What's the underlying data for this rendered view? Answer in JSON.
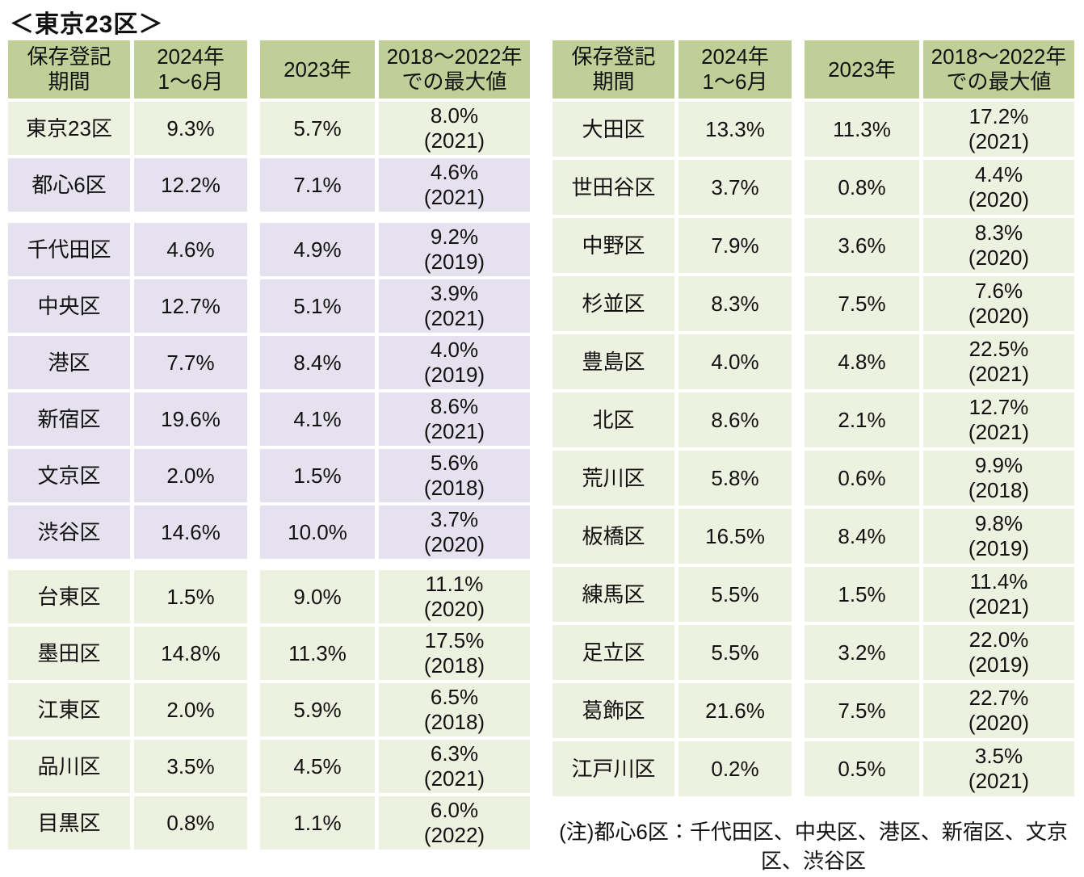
{
  "title": "＜東京23区＞",
  "colors": {
    "header": "#bfcf97",
    "green": "#edf1df",
    "purple": "#e6e1ee",
    "text": "#111111"
  },
  "column_headers": {
    "period": "保存登記\n期間",
    "h2024": "2024年\n1～6月",
    "h2023": "2023年",
    "hmax": "2018～2022年\nでの最大値"
  },
  "left_table": {
    "rows": [
      {
        "name": "東京23区",
        "v2024": "9.3%",
        "v2023": "5.7%",
        "max": "8.0%",
        "max_year": "(2021)",
        "tone": "green",
        "section_break": false
      },
      {
        "name": "都心6区",
        "v2024": "12.2%",
        "v2023": "7.1%",
        "max": "4.6%",
        "max_year": "(2021)",
        "tone": "purple",
        "section_break": false
      },
      {
        "name": "千代田区",
        "v2024": "4.6%",
        "v2023": "4.9%",
        "max": "9.2%",
        "max_year": "(2019)",
        "tone": "purple",
        "section_break": true
      },
      {
        "name": "中央区",
        "v2024": "12.7%",
        "v2023": "5.1%",
        "max": "3.9%",
        "max_year": "(2021)",
        "tone": "purple",
        "section_break": false
      },
      {
        "name": "港区",
        "v2024": "7.7%",
        "v2023": "8.4%",
        "max": "4.0%",
        "max_year": "(2019)",
        "tone": "purple",
        "section_break": false
      },
      {
        "name": "新宿区",
        "v2024": "19.6%",
        "v2023": "4.1%",
        "max": "8.6%",
        "max_year": "(2021)",
        "tone": "purple",
        "section_break": false
      },
      {
        "name": "文京区",
        "v2024": "2.0%",
        "v2023": "1.5%",
        "max": "5.6%",
        "max_year": "(2018)",
        "tone": "purple",
        "section_break": false
      },
      {
        "name": "渋谷区",
        "v2024": "14.6%",
        "v2023": "10.0%",
        "max": "3.7%",
        "max_year": "(2020)",
        "tone": "purple",
        "section_break": false
      },
      {
        "name": "台東区",
        "v2024": "1.5%",
        "v2023": "9.0%",
        "max": "11.1%",
        "max_year": "(2020)",
        "tone": "green",
        "section_break": true
      },
      {
        "name": "墨田区",
        "v2024": "14.8%",
        "v2023": "11.3%",
        "max": "17.5%",
        "max_year": "(2018)",
        "tone": "green",
        "section_break": false
      },
      {
        "name": "江東区",
        "v2024": "2.0%",
        "v2023": "5.9%",
        "max": "6.5%",
        "max_year": "(2018)",
        "tone": "green",
        "section_break": false
      },
      {
        "name": "品川区",
        "v2024": "3.5%",
        "v2023": "4.5%",
        "max": "6.3%",
        "max_year": "(2021)",
        "tone": "green",
        "section_break": false
      },
      {
        "name": "目黒区",
        "v2024": "0.8%",
        "v2023": "1.1%",
        "max": "6.0%",
        "max_year": "(2022)",
        "tone": "green",
        "section_break": false
      }
    ]
  },
  "right_table": {
    "rows": [
      {
        "name": "大田区",
        "v2024": "13.3%",
        "v2023": "11.3%",
        "max": "17.2%",
        "max_year": "(2021)",
        "tone": "green",
        "section_break": false
      },
      {
        "name": "世田谷区",
        "v2024": "3.7%",
        "v2023": "0.8%",
        "max": "4.4%",
        "max_year": "(2020)",
        "tone": "green",
        "section_break": false
      },
      {
        "name": "中野区",
        "v2024": "7.9%",
        "v2023": "3.6%",
        "max": "8.3%",
        "max_year": "(2020)",
        "tone": "green",
        "section_break": false
      },
      {
        "name": "杉並区",
        "v2024": "8.3%",
        "v2023": "7.5%",
        "max": "7.6%",
        "max_year": "(2020)",
        "tone": "green",
        "section_break": false
      },
      {
        "name": "豊島区",
        "v2024": "4.0%",
        "v2023": "4.8%",
        "max": "22.5%",
        "max_year": "(2021)",
        "tone": "green",
        "section_break": false
      },
      {
        "name": "北区",
        "v2024": "8.6%",
        "v2023": "2.1%",
        "max": "12.7%",
        "max_year": "(2021)",
        "tone": "green",
        "section_break": false
      },
      {
        "name": "荒川区",
        "v2024": "5.8%",
        "v2023": "0.6%",
        "max": "9.9%",
        "max_year": "(2018)",
        "tone": "green",
        "section_break": false
      },
      {
        "name": "板橋区",
        "v2024": "16.5%",
        "v2023": "8.4%",
        "max": "9.8%",
        "max_year": "(2019)",
        "tone": "green",
        "section_break": false
      },
      {
        "name": "練馬区",
        "v2024": "5.5%",
        "v2023": "1.5%",
        "max": "11.4%",
        "max_year": "(2021)",
        "tone": "green",
        "section_break": false
      },
      {
        "name": "足立区",
        "v2024": "5.5%",
        "v2023": "3.2%",
        "max": "22.0%",
        "max_year": "(2019)",
        "tone": "green",
        "section_break": false
      },
      {
        "name": "葛飾区",
        "v2024": "21.6%",
        "v2023": "7.5%",
        "max": "22.7%",
        "max_year": "(2020)",
        "tone": "green",
        "section_break": false
      },
      {
        "name": "江戸川区",
        "v2024": "0.2%",
        "v2023": "0.5%",
        "max": "3.5%",
        "max_year": "(2021)",
        "tone": "green",
        "section_break": false
      }
    ]
  },
  "note": "(注)都心6区：千代田区、中央区、港区、新宿区、文京区、渋谷区"
}
